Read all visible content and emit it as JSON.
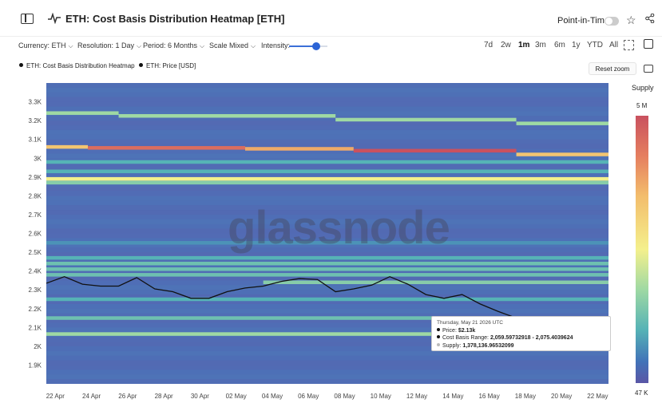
{
  "header": {
    "title": "ETH: Cost Basis Distribution Heatmap [ETH]",
    "point_in_time_label": "Point-in-Time"
  },
  "controls": {
    "currency": "Currency: ETH",
    "resolution": "Resolution: 1 Day",
    "period": "Period: 6 Months",
    "scale": "Scale Mixed",
    "intensity_label": "Intensity:",
    "intensity_level": 0.7,
    "ranges": [
      "7d",
      "2w",
      "1m",
      "3m",
      "6m",
      "1y",
      "YTD",
      "All"
    ],
    "active_range": "1m"
  },
  "legend": {
    "heatmap": "ETH: Cost Basis Distribution Heatmap",
    "price": "ETH: Price [USD]"
  },
  "reset_zoom": "Reset zoom",
  "colorbar": {
    "label": "Supply",
    "max": "5 M",
    "min": "47 K"
  },
  "watermark": "glassnode",
  "tooltip": {
    "date": "Thursday, May 21 2026 UTC",
    "price_label": "Price:",
    "price_value": "$2.13k",
    "range_label": "Cost Basis Range:",
    "range_value": "2,059.59732918 - 2,075.4039624",
    "supply_label": "Supply:",
    "supply_value": "1,378,136.96532099"
  },
  "chart_data": {
    "type": "heatmap",
    "y_ticks": [
      "1.9K",
      "2K",
      "2.1K",
      "2.2K",
      "2.3K",
      "2.4K",
      "2.5K",
      "2.6K",
      "2.7K",
      "2.8K",
      "2.9K",
      "3K",
      "3.1K",
      "3.2K",
      "3.3K"
    ],
    "y_tick_values": [
      1900,
      2000,
      2100,
      2200,
      2300,
      2400,
      2500,
      2600,
      2700,
      2800,
      2900,
      3000,
      3100,
      3200,
      3300
    ],
    "ylim": [
      1800,
      3400
    ],
    "x_ticks": [
      "22 Apr",
      "24 Apr",
      "26 Apr",
      "28 Apr",
      "30 Apr",
      "02 May",
      "04 May",
      "06 May",
      "08 May",
      "10 May",
      "12 May",
      "14 May",
      "16 May",
      "18 May",
      "20 May",
      "22 May"
    ],
    "x_range_days": [
      -0.5,
      30.6
    ],
    "price_series": {
      "days": [
        -0.5,
        0.5,
        1.5,
        2.5,
        3.5,
        4.5,
        5.5,
        6.5,
        7.5,
        8.5,
        9.5,
        10.5,
        11.5,
        12.5,
        13.5,
        14.5,
        15.5,
        16.5,
        17.5,
        18.5,
        19.5,
        20.5,
        21.5,
        22.5,
        23.5,
        24.5,
        25.5,
        26.5,
        27.5,
        28.5,
        29.5
      ],
      "values": [
        2335,
        2370,
        2330,
        2320,
        2320,
        2365,
        2305,
        2290,
        2255,
        2255,
        2290,
        2310,
        2320,
        2345,
        2360,
        2355,
        2290,
        2305,
        2325,
        2370,
        2330,
        2275,
        2255,
        2275,
        2225,
        2185,
        2150,
        2125,
        2120,
        2125,
        2130
      ]
    },
    "bands": [
      {
        "price": 3240,
        "supply": 0.55,
        "segments": [
          [
            -0.5,
            3.5
          ]
        ]
      },
      {
        "price": 3225,
        "supply": 0.55,
        "segments": [
          [
            3.5,
            15.5
          ]
        ]
      },
      {
        "price": 3205,
        "supply": 0.55,
        "segments": [
          [
            15.5,
            25.5
          ]
        ]
      },
      {
        "price": 3185,
        "supply": 0.55,
        "segments": [
          [
            25.5,
            30.6
          ]
        ]
      },
      {
        "price": 3060,
        "supply": 0.8,
        "segments": [
          [
            -0.5,
            1.8
          ]
        ]
      },
      {
        "price": 3055,
        "supply": 0.95,
        "segments": [
          [
            1.8,
            10.5
          ]
        ]
      },
      {
        "price": 3050,
        "supply": 0.85,
        "segments": [
          [
            10.5,
            16.5
          ]
        ]
      },
      {
        "price": 3040,
        "supply": 1.0,
        "segments": [
          [
            16.5,
            25.5
          ]
        ]
      },
      {
        "price": 3020,
        "supply": 0.8,
        "segments": [
          [
            25.5,
            30.6
          ]
        ]
      },
      {
        "price": 2980,
        "supply": 0.4,
        "segments": [
          [
            -0.5,
            30.6
          ]
        ]
      },
      {
        "price": 2930,
        "supply": 0.4,
        "segments": [
          [
            -0.5,
            30.6
          ]
        ]
      },
      {
        "price": 2890,
        "supply": 0.7,
        "segments": [
          [
            -0.5,
            30.6
          ]
        ]
      },
      {
        "price": 2870,
        "supply": 0.5,
        "segments": [
          [
            -0.5,
            30.6
          ]
        ]
      },
      {
        "price": 2550,
        "supply": 0.3,
        "segments": [
          [
            -0.5,
            30.6
          ]
        ]
      },
      {
        "price": 2470,
        "supply": 0.4,
        "segments": [
          [
            -0.5,
            30.6
          ]
        ]
      },
      {
        "price": 2440,
        "supply": 0.45,
        "segments": [
          [
            -0.5,
            30.6
          ]
        ]
      },
      {
        "price": 2410,
        "supply": 0.45,
        "segments": [
          [
            -0.5,
            30.6
          ]
        ]
      },
      {
        "price": 2380,
        "supply": 0.45,
        "segments": [
          [
            -0.5,
            30.6
          ]
        ]
      },
      {
        "price": 2340,
        "supply": 0.5,
        "segments": [
          [
            11.5,
            30.6
          ]
        ]
      },
      {
        "price": 2250,
        "supply": 0.4,
        "segments": [
          [
            -0.5,
            30.6
          ]
        ]
      },
      {
        "price": 2150,
        "supply": 0.45,
        "segments": [
          [
            -0.5,
            30.6
          ]
        ]
      },
      {
        "price": 2065,
        "supply": 0.55,
        "segments": [
          [
            -0.5,
            30.6
          ]
        ]
      }
    ]
  }
}
